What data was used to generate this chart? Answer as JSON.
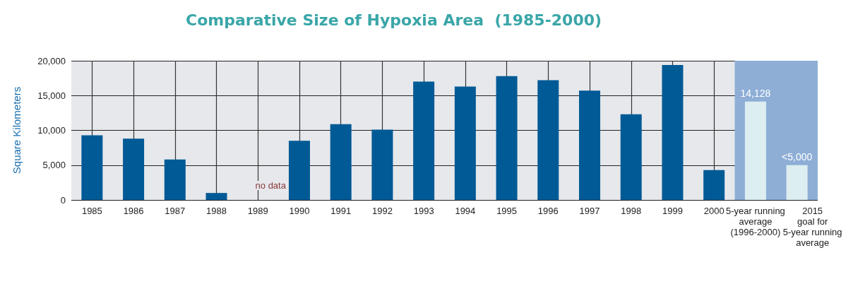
{
  "chart_data": {
    "type": "bar",
    "title": "Comparative Size of Hypoxia Area  (1985-2000)",
    "ylabel": "Square Kilometers",
    "categories": [
      "1985",
      "1986",
      "1987",
      "1988",
      "1989",
      "1990",
      "1991",
      "1992",
      "1993",
      "1994",
      "1995",
      "1996",
      "1997",
      "1998",
      "1999",
      "2000",
      "5-year running\naverage\n(1996-2000)",
      "2015\ngoal for\n5-year running\naverage"
    ],
    "values": [
      9300,
      8800,
      5800,
      1000,
      null,
      8500,
      10900,
      10100,
      17000,
      16300,
      17800,
      17200,
      15700,
      12300,
      19400,
      4300,
      14128,
      5000
    ],
    "colors": [
      "#005a96",
      "#005a96",
      "#005a96",
      "#005a96",
      "#005a96",
      "#005a96",
      "#005a96",
      "#005a96",
      "#005a96",
      "#005a96",
      "#005a96",
      "#005a96",
      "#005a96",
      "#005a96",
      "#005a96",
      "#005a96",
      "#ddeef0",
      "#ddeef0"
    ],
    "value_labels": [
      null,
      null,
      null,
      null,
      null,
      null,
      null,
      null,
      null,
      null,
      null,
      null,
      null,
      null,
      null,
      null,
      "14,128",
      "<5,000"
    ],
    "bands": [
      {
        "axis": "x",
        "from": "5-year running\naverage\n(1996-2000)",
        "to": "2015\ngoal for\n5-year running\naverage",
        "color": "#8eaed6"
      }
    ],
    "annotations": [
      "no data"
    ],
    "ylim": [
      0,
      20000
    ],
    "yticks": [
      {
        "value": 0,
        "label": "0"
      },
      {
        "value": 5000,
        "label": "5,000"
      },
      {
        "value": 10000,
        "label": "10,000"
      },
      {
        "value": 15000,
        "label": "15,000"
      },
      {
        "value": 20000,
        "label": "20,000"
      }
    ],
    "grid": true
  }
}
